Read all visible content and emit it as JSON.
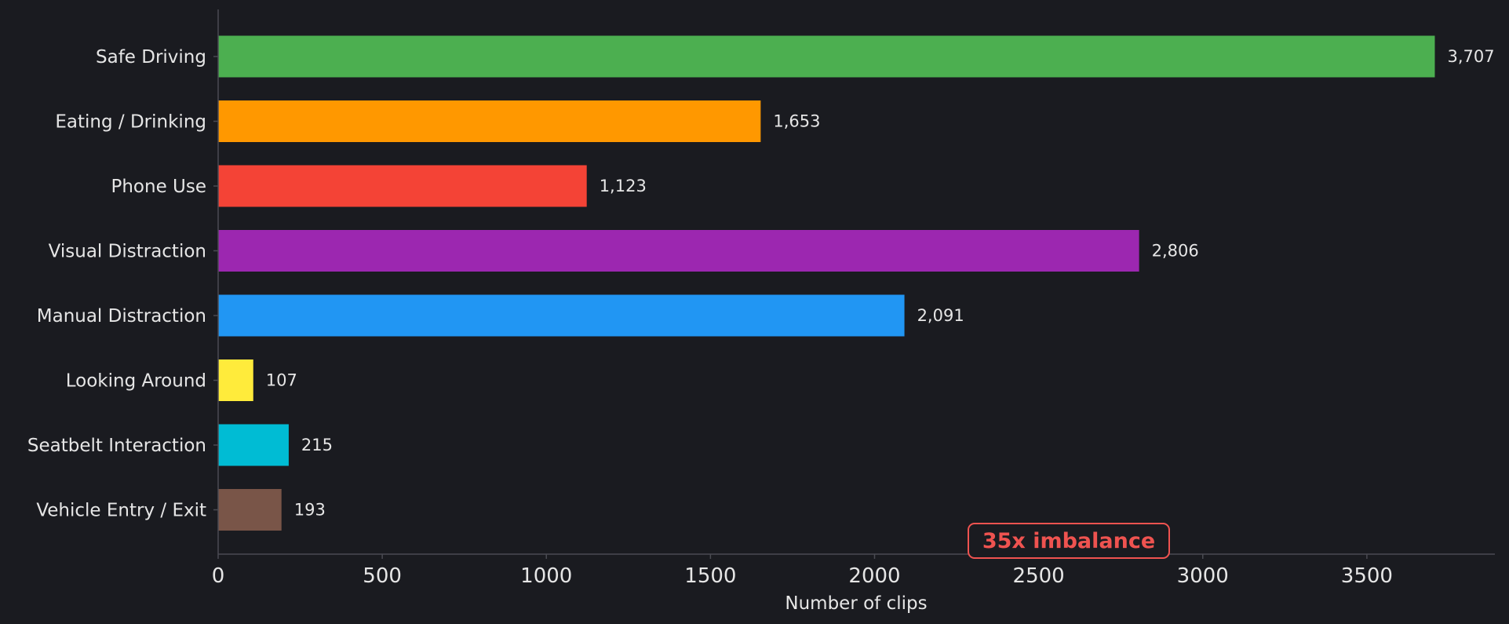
{
  "chart_data": {
    "type": "bar",
    "orientation": "horizontal",
    "categories": [
      "Safe Driving",
      "Eating / Drinking",
      "Phone Use",
      "Visual Distraction",
      "Manual Distraction",
      "Looking Around",
      "Seatbelt Interaction",
      "Vehicle Entry / Exit"
    ],
    "values": [
      3707,
      1653,
      1123,
      2806,
      2091,
      107,
      215,
      193
    ],
    "value_labels": [
      "3,707",
      "1,653",
      "1,123",
      "2,806",
      "2,091",
      "107",
      "215",
      "193"
    ],
    "colors": [
      "#4caf50",
      "#ff9800",
      "#f44336",
      "#9c27b0",
      "#2196f3",
      "#ffeb3b",
      "#00bcd4",
      "#795548"
    ],
    "xlabel": "Number of clips",
    "ylabel": "",
    "xlim": [
      0,
      3890
    ],
    "xticks": [
      0,
      500,
      1000,
      1500,
      2000,
      2500,
      3000,
      3500
    ],
    "xtick_labels": [
      "0",
      "500",
      "1000",
      "1500",
      "2000",
      "2500",
      "3000",
      "3500"
    ],
    "grid": false,
    "annotation": {
      "text": "35x imbalance",
      "color": "#ef5350"
    },
    "background": "#1a1b20",
    "axis_color": "#4a4b52",
    "text_color": "#e6e6e6"
  }
}
